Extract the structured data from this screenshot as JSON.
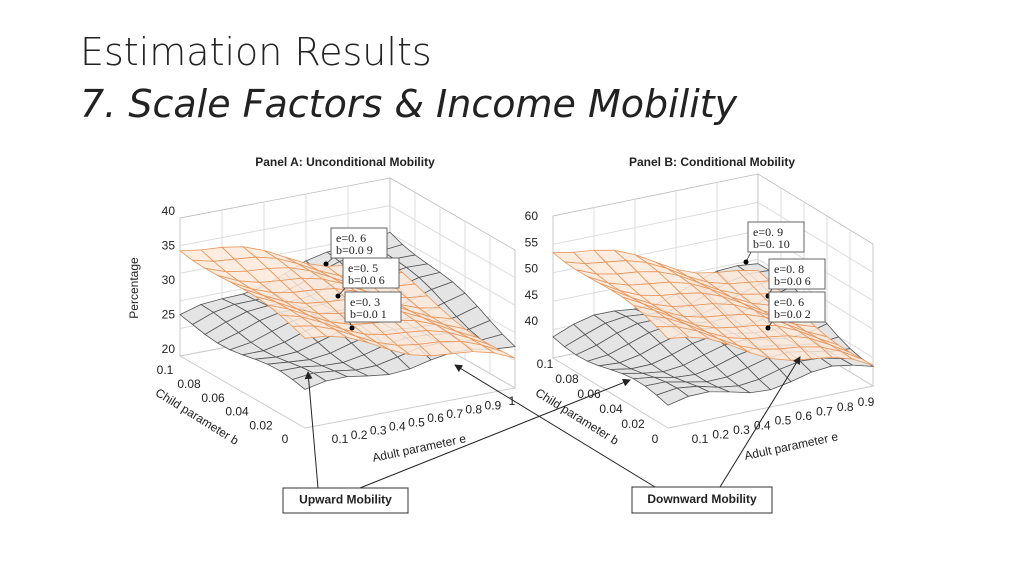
{
  "header": {
    "title": "Estimation Results",
    "subtitle": "7. Scale Factors & Income Mobility"
  },
  "panels": [
    {
      "title": "Panel A: Unconditional Mobility",
      "z_label": "Percentage",
      "z_ticks": [
        "20",
        "25",
        "30",
        "35",
        "40"
      ],
      "b_label": "Child parameter b",
      "b_ticks": [
        "0.1",
        "0.08",
        "0.06",
        "0.04",
        "0.02",
        "0"
      ],
      "e_label": "Adult parameter e",
      "e_ticks": [
        "0.1",
        "0.2",
        "0.3",
        "0.4",
        "0.5",
        "0.6",
        "0.7",
        "0.8",
        "0.9",
        "1"
      ],
      "datatips": [
        {
          "e": "e=0. 6",
          "b": "b=0.0 9"
        },
        {
          "e": "e=0. 5",
          "b": "b=0.0 6"
        },
        {
          "e": "e=0. 3",
          "b": "b=0.0 1"
        }
      ]
    },
    {
      "title": "Panel B: Conditional Mobility",
      "z_ticks": [
        "40",
        "45",
        "50",
        "55",
        "60"
      ],
      "b_label": "Child parameter b",
      "b_ticks": [
        "0.1",
        "0.08",
        "0.06",
        "0.04",
        "0.02",
        "0"
      ],
      "e_label": "Adult parameter e",
      "e_ticks": [
        "0.1",
        "0.2",
        "0.3",
        "0.4",
        "0.5",
        "0.6",
        "0.7",
        "0.8",
        "0.9"
      ],
      "datatips": [
        {
          "e": "e=0. 9",
          "b": "b=0. 10"
        },
        {
          "e": "e=0. 8",
          "b": "b=0.0 6"
        },
        {
          "e": "e=0. 6",
          "b": "b=0.0 2"
        }
      ]
    }
  ],
  "callouts": [
    "Upward Mobility",
    "Downward Mobility"
  ]
}
